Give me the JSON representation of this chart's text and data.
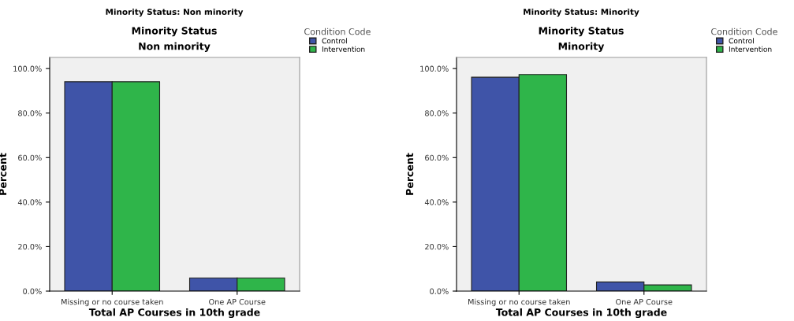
{
  "chart_data": [
    {
      "type": "bar",
      "title": "Minority Status: Non minority",
      "subtitle": "Minority Status\nNon minority",
      "xlabel": "Total AP Courses in 10th grade",
      "ylabel": "Percent",
      "legend_title": "Condition Code",
      "legend": "top right",
      "categories": [
        "Missing or no course taken",
        "One AP Course"
      ],
      "series": [
        {
          "name": "Control",
          "color": "#3f54a8",
          "values": [
            94.1,
            5.9
          ]
        },
        {
          "name": "Intervention",
          "color": "#2fb54a",
          "values": [
            94.1,
            5.9
          ]
        }
      ],
      "ylim": [
        0,
        105
      ],
      "yticks": [
        {
          "value": 0,
          "label": "0.0%"
        },
        {
          "value": 20,
          "label": "20.0%"
        },
        {
          "value": 40,
          "label": "40.0%"
        },
        {
          "value": 60,
          "label": "60.0%"
        },
        {
          "value": 80,
          "label": "80.0%"
        },
        {
          "value": 100,
          "label": "100.0%"
        }
      ],
      "grid": false
    },
    {
      "type": "bar",
      "title": "Minority Status: Minority",
      "subtitle": "Minority Status\nMinority",
      "xlabel": "Total AP Courses in 10th grade",
      "ylabel": "Percent",
      "legend_title": "Condition Code",
      "legend": "top right",
      "categories": [
        "Missing or no course taken",
        "One AP Course"
      ],
      "series": [
        {
          "name": "Control",
          "color": "#3f54a8",
          "values": [
            96.1,
            4.1
          ]
        },
        {
          "name": "Intervention",
          "color": "#2fb54a",
          "values": [
            97.3,
            2.8
          ]
        }
      ],
      "ylim": [
        0,
        105
      ],
      "yticks": [
        {
          "value": 0,
          "label": "0.0%"
        },
        {
          "value": 20,
          "label": "20.0%"
        },
        {
          "value": 40,
          "label": "40.0%"
        },
        {
          "value": 60,
          "label": "60.0%"
        },
        {
          "value": 80,
          "label": "80.0%"
        },
        {
          "value": 100,
          "label": "100.0%"
        }
      ],
      "grid": false
    }
  ]
}
